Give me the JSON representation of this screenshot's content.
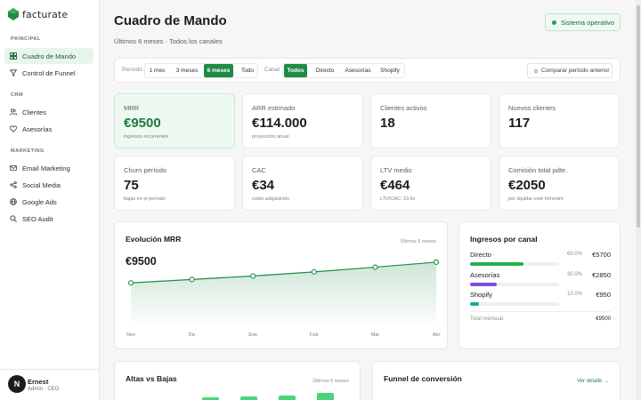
{
  "brand": {
    "name": "facturate",
    "accent": "#1f8b44"
  },
  "sidebar": {
    "sections": [
      {
        "title": "PRINCIPAL",
        "items": [
          {
            "label": "Cuadro de Mando",
            "icon": "grid-icon",
            "active": true
          },
          {
            "label": "Control de Funnel",
            "icon": "filter-icon",
            "active": false
          }
        ]
      },
      {
        "title": "CRM",
        "items": [
          {
            "label": "Clientes",
            "icon": "users-icon",
            "active": false
          },
          {
            "label": "Asesorías",
            "icon": "heart-icon",
            "active": false
          }
        ]
      },
      {
        "title": "MARKETING",
        "items": [
          {
            "label": "Email Marketing",
            "icon": "mail-icon",
            "active": false
          },
          {
            "label": "Social Media",
            "icon": "share-icon",
            "active": false
          },
          {
            "label": "Google Ads",
            "icon": "globe-icon",
            "active": false
          },
          {
            "label": "SEO Audit",
            "icon": "search-icon",
            "active": false
          }
        ]
      }
    ],
    "user": {
      "initial": "N",
      "name": "Ernest",
      "role": "Admin · CEO"
    }
  },
  "header": {
    "title": "Cuadro de Mando",
    "subtitle": "Últimos 6 meses · Todos los canales",
    "status": "Sistema operativo"
  },
  "filters": {
    "period_label": "Período",
    "periods": [
      {
        "label": "1 mes",
        "selected": false
      },
      {
        "label": "3 meses",
        "selected": false
      },
      {
        "label": "6 meses",
        "selected": true
      },
      {
        "label": "Todo",
        "selected": false
      }
    ],
    "channel_label": "Canal",
    "channels": [
      {
        "label": "Todos",
        "selected": true
      },
      {
        "label": "Directo",
        "selected": false
      },
      {
        "label": "Asesorías",
        "selected": false
      },
      {
        "label": "Shopify",
        "selected": false
      }
    ],
    "compare_label": "Comparar período anterior"
  },
  "kpis": [
    {
      "label": "MRR",
      "value": "€9500",
      "sub": "ingresos recurrentes",
      "highlight": true
    },
    {
      "label": "ARR estimado",
      "value": "€114.000",
      "sub": "proyección anual"
    },
    {
      "label": "Clientes activos",
      "value": "18",
      "sub": ""
    },
    {
      "label": "Nuevos clientes",
      "value": "117",
      "sub": ""
    },
    {
      "label": "Churn período",
      "value": "75",
      "sub": "bajas en el período"
    },
    {
      "label": "CAC",
      "value": "€34",
      "sub": "costo adquisición"
    },
    {
      "label": "LTV medio",
      "value": "€464",
      "sub": "LTV/CAC: 13.6x"
    },
    {
      "label": "Comisión total pdte.",
      "value": "€2050",
      "sub": "por liquidar este trimestre"
    }
  ],
  "mrr_card": {
    "title": "Evolución MRR",
    "meta": "Últimos 6 meses",
    "value": "€9500",
    "chart_data": {
      "type": "area",
      "categories": [
        "Nov",
        "Dic",
        "Ene",
        "Feb",
        "Mar",
        "Abr"
      ],
      "values": [
        6200,
        6750,
        7300,
        7950,
        8700,
        9500
      ],
      "ylim": [
        0,
        10200
      ],
      "color": "#1f8b44",
      "grid": false
    }
  },
  "channels_card": {
    "title": "Ingresos por canal",
    "rows": [
      {
        "name": "Directo",
        "pct": "60.0%",
        "amount": "€5700",
        "share": 0.6,
        "color": "#22b14c"
      },
      {
        "name": "Asesorías",
        "pct": "30.0%",
        "amount": "€2850",
        "share": 0.3,
        "color": "#7b4fe0"
      },
      {
        "name": "Shopify",
        "pct": "10.0%",
        "amount": "€950",
        "share": 0.1,
        "color": "#17a99a"
      }
    ],
    "total_label": "Total mensual",
    "total_value": "€9500"
  },
  "altas_card": {
    "title": "Altas vs Bajas",
    "meta": "Últimos 6 meses"
  },
  "funnel_card": {
    "title": "Funnel de conversión",
    "link": "Ver detalle →"
  }
}
